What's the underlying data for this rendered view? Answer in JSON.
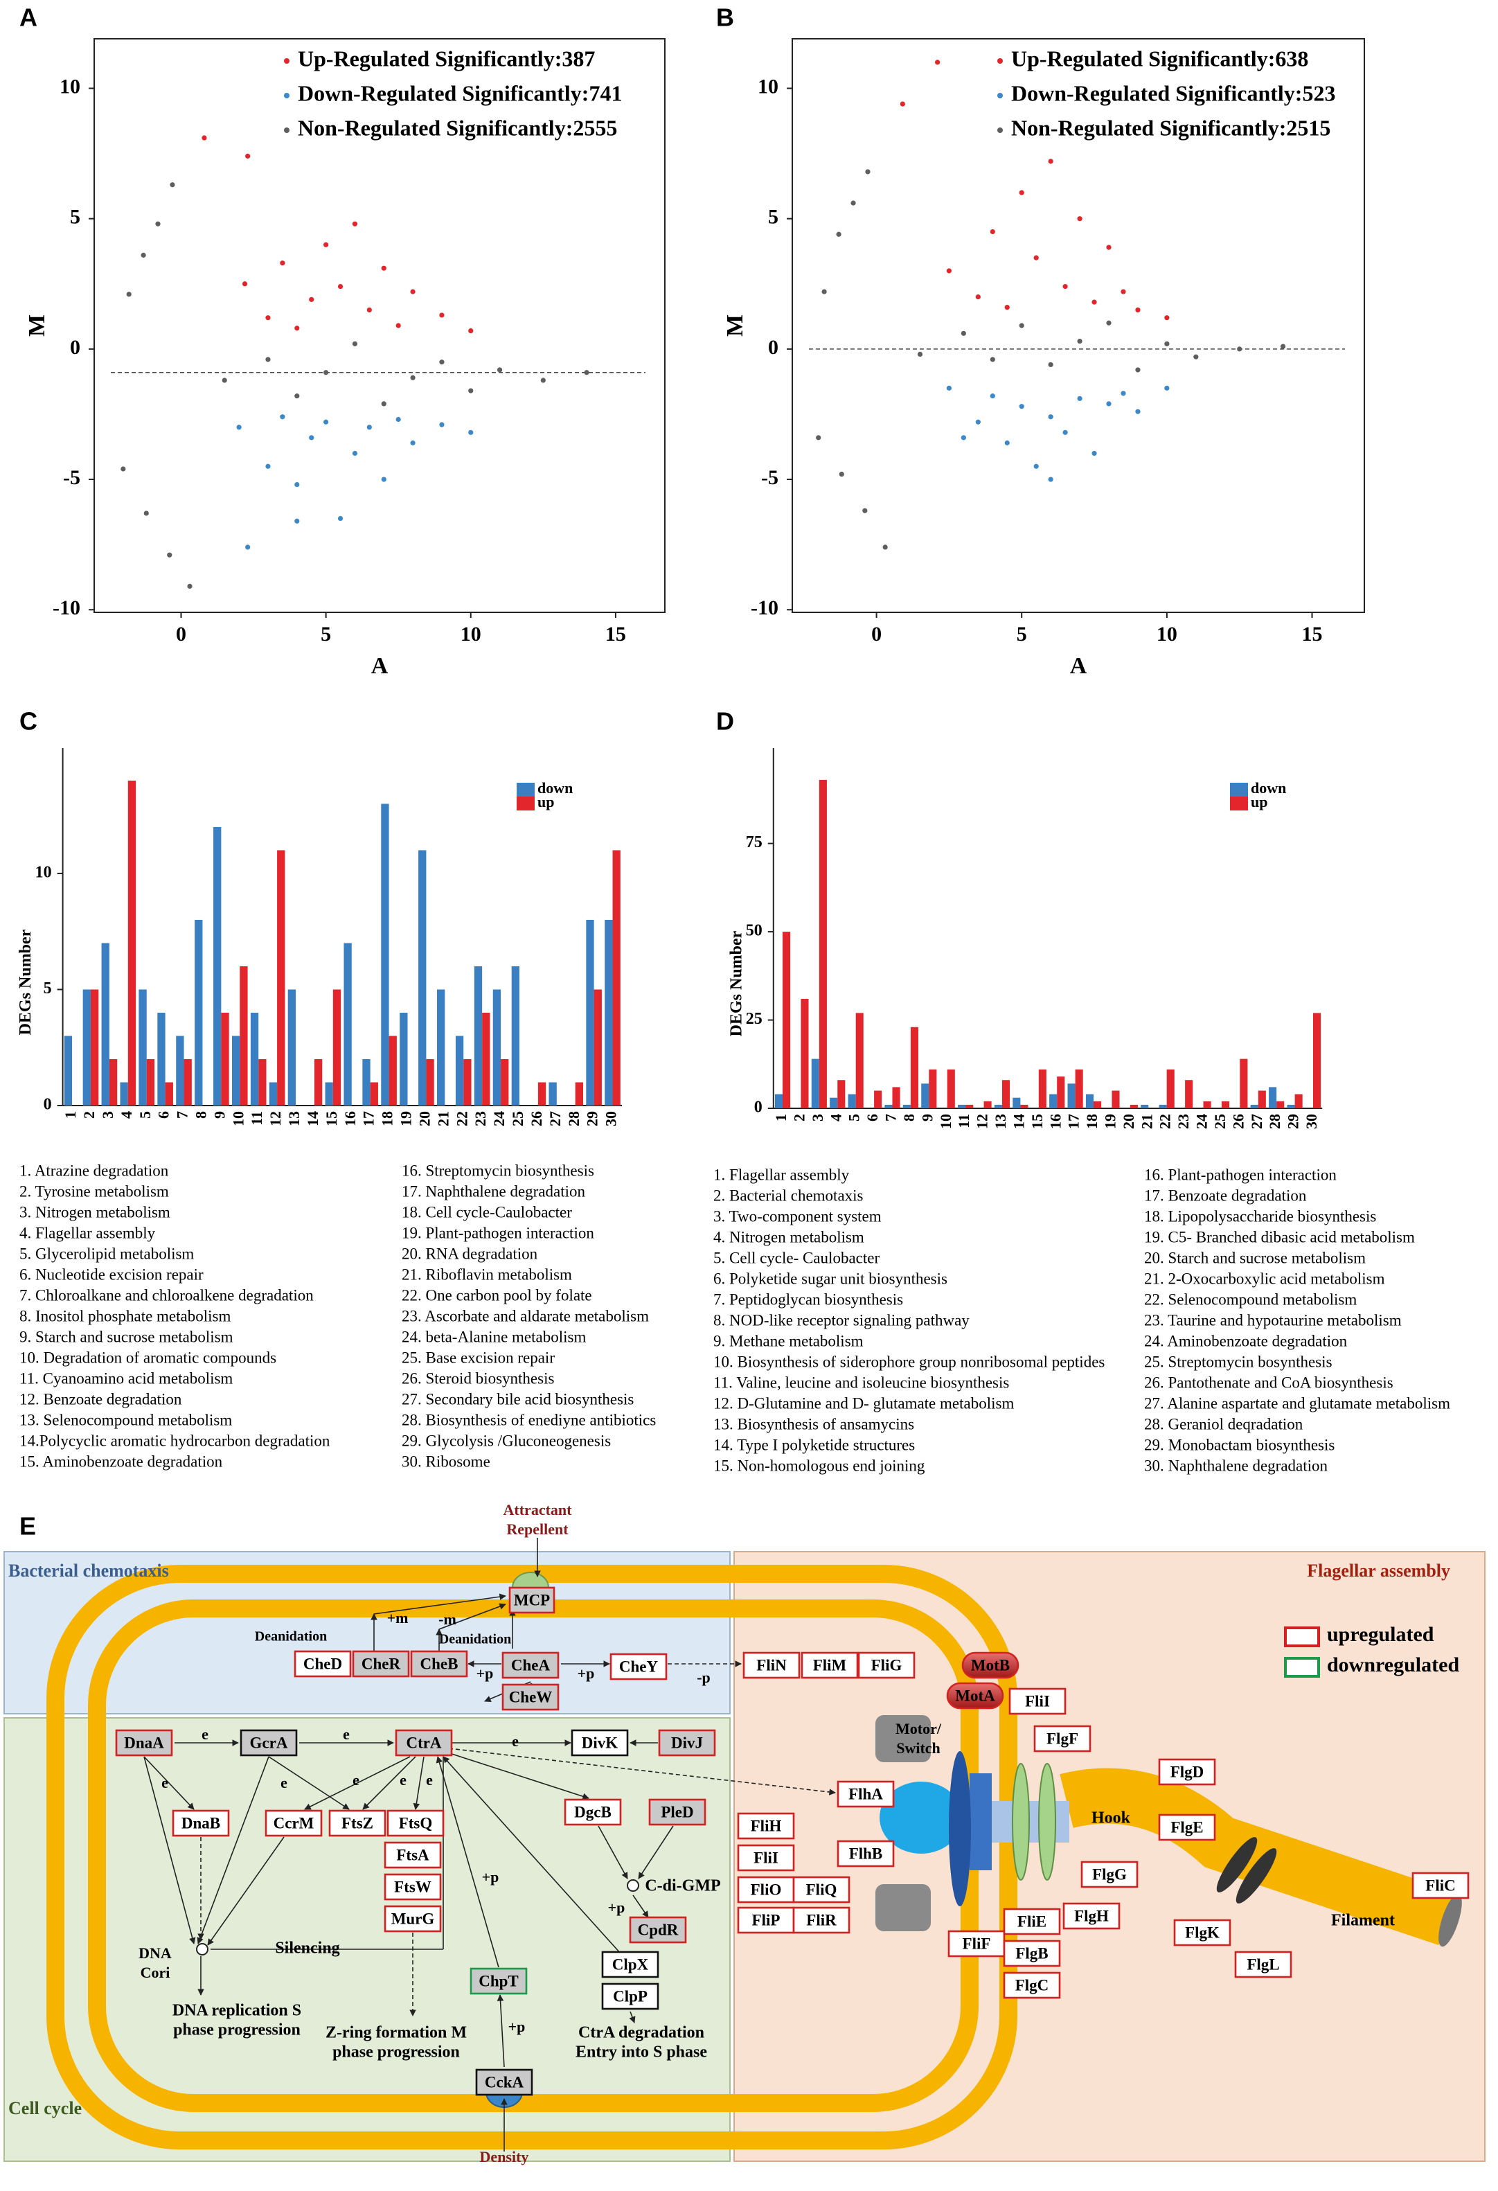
{
  "chart_data": [
    {
      "type": "scatter",
      "panel_label": "A",
      "xlabel": "A",
      "ylabel": "M",
      "xlim": [
        -3,
        16.7
      ],
      "ylim": [
        -10.1,
        11.9
      ],
      "xticks": [
        0,
        5,
        10,
        15
      ],
      "yticks": [
        -10,
        -5,
        0,
        5,
        10
      ],
      "reference_line": -0.9,
      "series": [
        {
          "name": "Up-Regulated Significantly:387",
          "color": "#e3262b",
          "x": [
            0.8,
            2.3,
            2.2,
            3,
            3.5,
            4,
            4.5,
            5,
            5.5,
            6,
            6.5,
            7,
            7.5,
            8,
            9,
            10
          ],
          "values": [
            8.1,
            7.4,
            2.5,
            1.2,
            3.3,
            0.8,
            1.9,
            4,
            2.4,
            4.8,
            1.5,
            3.1,
            0.9,
            2.2,
            1.3,
            0.7
          ]
        },
        {
          "name": "Down-Regulated Significantly:741",
          "color": "#3c88c9",
          "x": [
            2.3,
            4,
            2,
            3,
            3.5,
            4,
            4.5,
            5,
            5.5,
            6,
            6.5,
            7,
            7.5,
            8,
            9,
            10
          ],
          "values": [
            -7.6,
            -6.6,
            -3,
            -4.5,
            -2.6,
            -5.2,
            -3.4,
            -2.8,
            -6.5,
            -4,
            -3,
            -5,
            -2.7,
            -3.6,
            -2.9,
            -3.2
          ]
        },
        {
          "name": "Non-Regulated Significantly:2555",
          "color": "#5e5e5e",
          "x": [
            -1.8,
            -1.3,
            -0.8,
            -0.3,
            -2.0,
            -1.2,
            -0.4,
            0.3,
            1.5,
            3,
            4,
            5,
            6,
            7,
            8,
            9,
            10,
            11,
            12.5,
            14
          ],
          "values": [
            2.1,
            3.6,
            4.8,
            6.3,
            -4.6,
            -6.3,
            -7.9,
            -9.1,
            -1.2,
            -0.4,
            -1.8,
            -0.9,
            0.2,
            -2.1,
            -1.1,
            -0.5,
            -1.6,
            -0.8,
            -1.2,
            -0.9
          ]
        }
      ]
    },
    {
      "type": "scatter",
      "panel_label": "B",
      "xlabel": "A",
      "ylabel": "M",
      "xlim": [
        -2.9,
        16.8
      ],
      "ylim": [
        -10.1,
        11.9
      ],
      "xticks": [
        0,
        5,
        10,
        15
      ],
      "yticks": [
        -10,
        -5,
        0,
        5,
        10
      ],
      "reference_line": 0,
      "series": [
        {
          "name": "Up-Regulated Significantly:638",
          "color": "#e3262b",
          "x": [
            0.9,
            2.1,
            2.5,
            3.5,
            4,
            4.5,
            5,
            5.5,
            6,
            6.5,
            7,
            7.5,
            8,
            8.5,
            9,
            10
          ],
          "values": [
            9.4,
            11,
            3,
            2,
            4.5,
            1.6,
            6,
            3.5,
            7.2,
            2.4,
            5,
            1.8,
            3.9,
            2.2,
            1.5,
            1.2
          ]
        },
        {
          "name": "Down-Regulated Significantly:523",
          "color": "#3c88c9",
          "x": [
            3,
            6,
            2.5,
            3.5,
            4,
            4.5,
            5,
            5.5,
            6,
            6.5,
            7,
            7.5,
            8,
            8.5,
            9,
            10
          ],
          "values": [
            -3.4,
            -5,
            -1.5,
            -2.8,
            -1.8,
            -3.6,
            -2.2,
            -4.5,
            -2.6,
            -3.2,
            -1.9,
            -4,
            -2.1,
            -1.7,
            -2.4,
            -1.5
          ]
        },
        {
          "name": "Non-Regulated Significantly:2515",
          "color": "#5e5e5e",
          "x": [
            -1.8,
            -1.3,
            -0.8,
            -0.3,
            -2.0,
            -1.2,
            -0.4,
            0.3,
            1.5,
            3,
            4,
            5,
            6,
            7,
            8,
            9,
            10,
            11,
            12.5,
            14
          ],
          "values": [
            2.2,
            4.4,
            5.6,
            6.8,
            -3.4,
            -4.8,
            -6.2,
            -7.6,
            -0.2,
            0.6,
            -0.4,
            0.9,
            -0.6,
            0.3,
            1,
            -0.8,
            0.2,
            -0.3,
            0,
            0.1
          ]
        }
      ]
    },
    {
      "type": "bar",
      "panel_label": "C",
      "ylabel": "DEGs Number",
      "categories": [
        "1",
        "2",
        "3",
        "4",
        "5",
        "6",
        "7",
        "8",
        "9",
        "10",
        "11",
        "12",
        "13",
        "14",
        "15",
        "16",
        "17",
        "18",
        "19",
        "20",
        "21",
        "22",
        "23",
        "24",
        "25",
        "26",
        "27",
        "28",
        "29",
        "30"
      ],
      "ylim": [
        0,
        15.4
      ],
      "yticks": [
        0,
        5,
        10
      ],
      "series": [
        {
          "name": "down",
          "color": "#3a7fc1",
          "values": [
            3,
            5,
            7,
            1,
            5,
            4,
            3,
            8,
            12,
            3,
            4,
            1,
            5,
            0,
            1,
            7,
            2,
            13,
            4,
            11,
            5,
            3,
            6,
            5,
            6,
            0,
            1,
            0,
            8,
            8
          ]
        },
        {
          "name": "up",
          "color": "#e3262b",
          "values": [
            0,
            5,
            2,
            14,
            2,
            1,
            2,
            0,
            4,
            6,
            2,
            11,
            0,
            2,
            5,
            0,
            1,
            3,
            0,
            2,
            0,
            2,
            4,
            2,
            0,
            1,
            0,
            1,
            5,
            11
          ]
        }
      ],
      "legend_items": [
        "1. Atrazine degradation",
        "2. Tyrosine metabolism",
        "3. Nitrogen metabolism",
        "4. Flagellar assembly",
        "5. Glycerolipid metabolism",
        "6. Nucleotide excision repair",
        "7. Chloroalkane and chloroalkene degradation",
        "8. Inositol phosphate metabolism",
        "9. Starch and sucrose metabolism",
        "10. Degradation of aromatic compounds",
        "11. Cyanoamino acid metabolism",
        "12. Benzoate degradation",
        "13. Selenocompound metabolism",
        "14.Polycyclic aromatic hydrocarbon degradation",
        "15. Aminobenzoate degradation",
        "16. Streptomycin biosynthesis",
        "17. Naphthalene degradation",
        "18. Cell cycle-Caulobacter",
        "19. Plant-pathogen interaction",
        "20. RNA degradation",
        "21. Riboflavin metabolism",
        "22. One carbon pool by folate",
        "23. Ascorbate and aldarate metabolism",
        "24. beta-Alanine metabolism",
        "25. Base excision repair",
        "26. Steroid biosynthesis",
        "27. Secondary bile acid biosynthesis",
        "28. Biosynthesis of enediyne antibiotics",
        "29. Glycolysis /Gluconeogenesis",
        "30. Ribosome"
      ]
    },
    {
      "type": "bar",
      "panel_label": "D",
      "ylabel": "DEGs Number",
      "categories": [
        "1",
        "2",
        "3",
        "4",
        "5",
        "6",
        "7",
        "8",
        "9",
        "10",
        "11",
        "12",
        "13",
        "14",
        "15",
        "16",
        "17",
        "18",
        "19",
        "20",
        "21",
        "22",
        "23",
        "24",
        "25",
        "26",
        "27",
        "28",
        "29",
        "30"
      ],
      "ylim": [
        0,
        102
      ],
      "yticks": [
        0,
        25,
        50,
        75
      ],
      "series": [
        {
          "name": "down",
          "color": "#3a7fc1",
          "values": [
            4,
            0,
            14,
            3,
            4,
            0,
            1,
            1,
            7,
            0,
            1,
            0,
            1,
            3,
            0,
            4,
            7,
            4,
            0,
            0,
            1,
            1,
            0,
            0,
            0,
            0,
            1,
            6,
            1,
            0
          ]
        },
        {
          "name": "up",
          "color": "#e3262b",
          "values": [
            50,
            31,
            93,
            8,
            27,
            5,
            6,
            23,
            11,
            11,
            1,
            2,
            8,
            1,
            11,
            9,
            11,
            2,
            5,
            1,
            0,
            11,
            8,
            2,
            2,
            14,
            5,
            2,
            4,
            27
          ]
        }
      ],
      "legend_items": [
        "1. Flagellar assembly",
        "2. Bacterial chemotaxis",
        "3. Two-component system",
        "4. Nitrogen metabolism",
        "5. Cell cycle- Caulobacter",
        "6. Polyketide sugar unit biosynthesis",
        "7. Peptidoglycan biosynthesis",
        "8. NOD-like receptor signaling pathway",
        "9. Methane metabolism",
        "10. Biosynthesis of siderophore group nonribosomal peptides",
        "11. Valine, leucine and isoleucine biosynthesis",
        "12. D-Glutamine and D- glutamate metabolism",
        "13. Biosynthesis of ansamycins",
        "14. Type I polyketide structures",
        "15. Non-homologous end joining",
        "16. Plant-pathogen interaction",
        "17. Benzoate degradation",
        "18. Lipopolysaccharide biosynthesis",
        "19. C5- Branched dibasic acid metabolism",
        "20. Starch and sucrose metabolism",
        "21. 2-Oxocarboxylic acid metabolism",
        "22. Selenocompound metabolism",
        "23. Taurine and hypotaurine metabolism",
        "24. Aminobenzoate degradation",
        "25. Streptomycin bosynthesis",
        "26. Pantothenate and CoA biosynthesis",
        "27. Alanine aspartate and glutamate metabolism",
        "28. Geraniol deqradation",
        "29. Monobactam biosynthesis",
        "30. Naphthalene degradation"
      ]
    }
  ],
  "diagram": {
    "nodes": [
      "MCP",
      "CheD",
      "CheR",
      "CheB",
      "CheA",
      "CheW",
      "CheY",
      "FliN",
      "FliM",
      "FliG",
      "MotB",
      "MotA",
      "FliI",
      "FlgF",
      "DnaA",
      "GcrA",
      "CtrA",
      "DivK",
      "DivJ",
      "DnaB",
      "CcrM",
      "FtsZ",
      "FtsQ",
      "FtsA",
      "FtsW",
      "MurG",
      "DgcB",
      "PleD",
      "CpdR",
      "ClpX",
      "ClpP",
      "ChpT",
      "CckA",
      "FlhA",
      "FlhB",
      "FliH",
      "FliI",
      "FliO",
      "FliQ",
      "FliP",
      "FliR",
      "FliF",
      "FliE",
      "FlgB",
      "FlgC",
      "FlgH",
      "FlgG",
      "FlgD",
      "FlgE",
      "FlgK",
      "FlgL",
      "FliC"
    ],
    "texts": [
      "E",
      "Attractant",
      "Repellent",
      "Bacterial chemotaxis",
      "Flagellar assembly",
      "Cell cycle",
      "Density",
      "upregulated",
      "downregulated",
      "Deanidation",
      "+m",
      "-m",
      "Deanidation",
      "+p",
      "+p",
      "-p",
      "e",
      "e",
      "e",
      "e",
      "e",
      "e",
      "e",
      "e",
      "Motor/",
      "Switch",
      "Hook",
      "Filament",
      "C-di-GMP",
      "+p",
      "+p",
      "+p",
      "Silencing",
      "DNA",
      "Cori",
      "DNA replication S",
      "phase progression",
      "Z-ring formation M",
      "phase progression",
      "CtrA degradation",
      "Entry into S phase"
    ]
  }
}
